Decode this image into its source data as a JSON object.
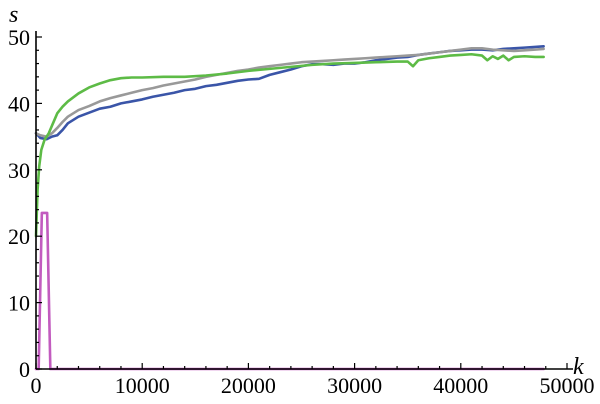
{
  "chart_data": {
    "type": "line",
    "xlabel": "k",
    "ylabel": "s",
    "xlim": [
      0,
      50000
    ],
    "ylim": [
      0,
      50
    ],
    "x_ticks": [
      0,
      10000,
      20000,
      30000,
      40000,
      50000
    ],
    "y_ticks": [
      0,
      10,
      20,
      30,
      40,
      50
    ],
    "x_tick_labels": [
      "0",
      "10000",
      "20000",
      "30000",
      "40000",
      "50000"
    ],
    "y_tick_labels": [
      "0",
      "10",
      "20",
      "30",
      "40",
      "50"
    ],
    "grid": false,
    "legend": "none",
    "series": [
      {
        "color": "#3a55a8",
        "points": [
          [
            0,
            35.5
          ],
          [
            400,
            34.8
          ],
          [
            1000,
            34.6
          ],
          [
            1500,
            35.0
          ],
          [
            2000,
            35.2
          ],
          [
            2500,
            36.0
          ],
          [
            3000,
            37.0
          ],
          [
            4000,
            38.0
          ],
          [
            5000,
            38.6
          ],
          [
            6000,
            39.2
          ],
          [
            7000,
            39.5
          ],
          [
            8000,
            40.0
          ],
          [
            9000,
            40.3
          ],
          [
            10000,
            40.6
          ],
          [
            11000,
            41.0
          ],
          [
            12000,
            41.3
          ],
          [
            13000,
            41.6
          ],
          [
            14000,
            42.0
          ],
          [
            15000,
            42.2
          ],
          [
            16000,
            42.6
          ],
          [
            17000,
            42.8
          ],
          [
            18000,
            43.1
          ],
          [
            19000,
            43.4
          ],
          [
            20000,
            43.6
          ],
          [
            21000,
            43.7
          ],
          [
            22000,
            44.3
          ],
          [
            23000,
            44.7
          ],
          [
            24000,
            45.1
          ],
          [
            25000,
            45.6
          ],
          [
            26000,
            45.9
          ],
          [
            27000,
            45.9
          ],
          [
            28000,
            45.8
          ],
          [
            29000,
            46.0
          ],
          [
            30000,
            46.0
          ],
          [
            31000,
            46.2
          ],
          [
            32000,
            46.5
          ],
          [
            33000,
            46.7
          ],
          [
            34000,
            46.9
          ],
          [
            35000,
            47.0
          ],
          [
            36000,
            47.3
          ],
          [
            37000,
            47.5
          ],
          [
            38000,
            47.7
          ],
          [
            39000,
            47.9
          ],
          [
            40000,
            48.0
          ],
          [
            41000,
            48.1
          ],
          [
            42000,
            48.1
          ],
          [
            43000,
            48.0
          ],
          [
            44000,
            48.2
          ],
          [
            45000,
            48.3
          ],
          [
            46000,
            48.4
          ],
          [
            47000,
            48.5
          ],
          [
            47800,
            48.6
          ]
        ]
      },
      {
        "color": "#999999",
        "points": [
          [
            0,
            35.5
          ],
          [
            400,
            35.2
          ],
          [
            1000,
            35.0
          ],
          [
            1500,
            35.5
          ],
          [
            2000,
            36.3
          ],
          [
            2500,
            37.2
          ],
          [
            3000,
            38.0
          ],
          [
            4000,
            39.0
          ],
          [
            5000,
            39.6
          ],
          [
            6000,
            40.3
          ],
          [
            7000,
            40.8
          ],
          [
            8000,
            41.2
          ],
          [
            9000,
            41.6
          ],
          [
            10000,
            42.0
          ],
          [
            11000,
            42.3
          ],
          [
            12000,
            42.7
          ],
          [
            13000,
            43.0
          ],
          [
            14000,
            43.3
          ],
          [
            15000,
            43.6
          ],
          [
            16000,
            44.0
          ],
          [
            17000,
            44.3
          ],
          [
            18000,
            44.6
          ],
          [
            19000,
            44.9
          ],
          [
            20000,
            45.1
          ],
          [
            21000,
            45.4
          ],
          [
            22000,
            45.6
          ],
          [
            23000,
            45.8
          ],
          [
            24000,
            46.0
          ],
          [
            25000,
            46.2
          ],
          [
            26000,
            46.3
          ],
          [
            27000,
            46.4
          ],
          [
            28000,
            46.5
          ],
          [
            29000,
            46.6
          ],
          [
            30000,
            46.7
          ],
          [
            31000,
            46.8
          ],
          [
            32000,
            46.9
          ],
          [
            33000,
            47.0
          ],
          [
            34000,
            47.1
          ],
          [
            35000,
            47.2
          ],
          [
            36000,
            47.3
          ],
          [
            37000,
            47.5
          ],
          [
            38000,
            47.7
          ],
          [
            39000,
            47.9
          ],
          [
            40000,
            48.1
          ],
          [
            41000,
            48.3
          ],
          [
            42000,
            48.3
          ],
          [
            43000,
            48.1
          ],
          [
            44000,
            48.0
          ],
          [
            45000,
            47.9
          ],
          [
            46000,
            48.0
          ],
          [
            47000,
            48.1
          ],
          [
            47800,
            48.2
          ]
        ]
      },
      {
        "color": "#5dbb46",
        "points": [
          [
            0,
            20.0
          ],
          [
            150,
            27.0
          ],
          [
            300,
            30.5
          ],
          [
            500,
            33.0
          ],
          [
            800,
            34.5
          ],
          [
            1200,
            35.5
          ],
          [
            1600,
            37.0
          ],
          [
            2000,
            38.5
          ],
          [
            2500,
            39.5
          ],
          [
            3000,
            40.3
          ],
          [
            4000,
            41.5
          ],
          [
            5000,
            42.4
          ],
          [
            6000,
            43.0
          ],
          [
            7000,
            43.5
          ],
          [
            8000,
            43.8
          ],
          [
            9000,
            43.9
          ],
          [
            10000,
            43.9
          ],
          [
            12000,
            44.0
          ],
          [
            14000,
            44.0
          ],
          [
            16000,
            44.2
          ],
          [
            18000,
            44.5
          ],
          [
            20000,
            44.9
          ],
          [
            22000,
            45.2
          ],
          [
            24000,
            45.5
          ],
          [
            26000,
            45.8
          ],
          [
            28000,
            46.0
          ],
          [
            30000,
            46.1
          ],
          [
            32000,
            46.2
          ],
          [
            34000,
            46.3
          ],
          [
            35000,
            46.3
          ],
          [
            35500,
            45.6
          ],
          [
            36000,
            46.5
          ],
          [
            37000,
            46.8
          ],
          [
            38000,
            47.0
          ],
          [
            39000,
            47.2
          ],
          [
            40000,
            47.3
          ],
          [
            41000,
            47.4
          ],
          [
            42000,
            47.2
          ],
          [
            42500,
            46.5
          ],
          [
            43000,
            47.1
          ],
          [
            43500,
            46.7
          ],
          [
            44000,
            47.2
          ],
          [
            44500,
            46.5
          ],
          [
            45000,
            47.0
          ],
          [
            46000,
            47.1
          ],
          [
            47000,
            47.0
          ],
          [
            47800,
            47.0
          ]
        ]
      },
      {
        "color": "#c25bbf",
        "points": [
          [
            0,
            0
          ],
          [
            250,
            0
          ],
          [
            550,
            23.5
          ],
          [
            1050,
            23.5
          ],
          [
            1350,
            0
          ],
          [
            2000,
            0
          ],
          [
            47800,
            0
          ]
        ]
      }
    ]
  }
}
